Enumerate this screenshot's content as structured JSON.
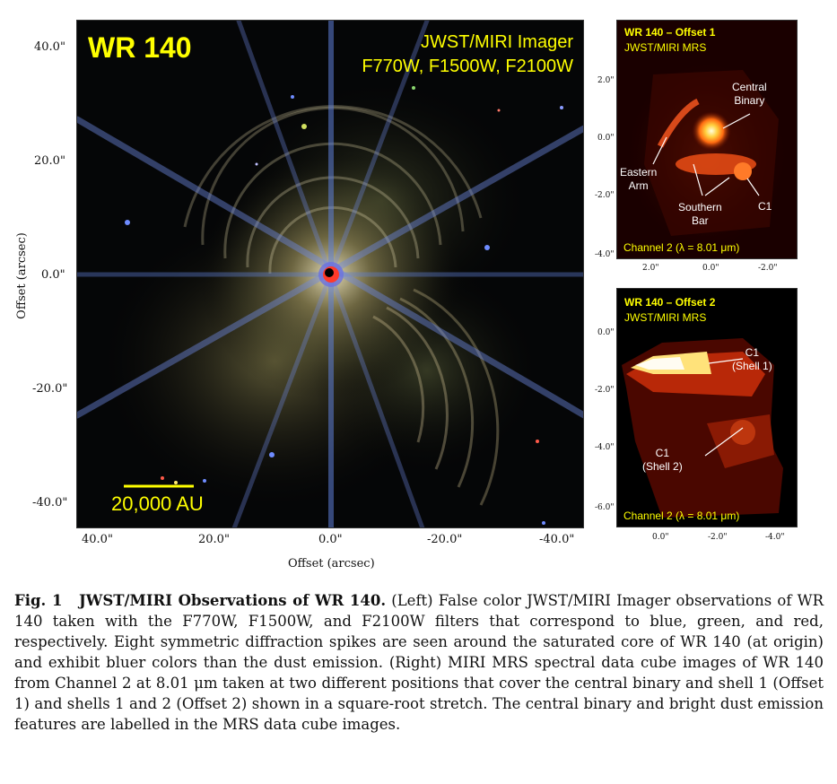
{
  "main_panel": {
    "title": "WR 140",
    "instrument": "JWST/MIRI Imager",
    "filters": "F770W, F1500W, F2100W",
    "scalebar": "20,000 AU",
    "y_ticks": [
      "40.0\"",
      "20.0\"",
      "0.0\"",
      "-20.0\"",
      "-40.0\""
    ],
    "x_ticks": [
      "40.0\"",
      "20.0\"",
      "0.0\"",
      "-20.0\"",
      "-40.0\""
    ],
    "ylabel": "Offset (arcsec)",
    "xlabel": "Offset (arcsec)"
  },
  "offset1_panel": {
    "title": "WR 140 – Offset 1",
    "subtitle": "JWST/MIRI MRS",
    "channel": "Channel 2 (λ = 8.01 μm)",
    "labels": {
      "central_binary": "Central\nBinary",
      "eastern_arm": "Eastern\nArm",
      "southern_bar": "Southern\nBar",
      "c1": "C1"
    },
    "y_ticks": [
      "2.0\"",
      "0.0\"",
      "-2.0\"",
      "-4.0\""
    ],
    "x_ticks": [
      "2.0\"",
      "0.0\"",
      "-2.0\""
    ]
  },
  "offset2_panel": {
    "title": "WR 140 – Offset 2",
    "subtitle": "JWST/MIRI MRS",
    "channel": "Channel 2 (λ = 8.01 μm)",
    "labels": {
      "c1_shell1": "C1\n(Shell 1)",
      "c1_shell2": "C1\n(Shell 2)"
    },
    "y_ticks": [
      "0.0\"",
      "-2.0\"",
      "-4.0\"",
      "-6.0\""
    ],
    "x_ticks": [
      "0.0\"",
      "-2.0\"",
      "-4.0\""
    ]
  },
  "caption": {
    "label": "Fig. 1",
    "title": "JWST/MIRI Observations of WR 140.",
    "body": "(Left) False color JWST/MIRI Imager observations of WR 140 taken with the F770W, F1500W, and F2100W filters that correspond to blue, green, and red, respectively.  Eight symmetric diffraction spikes are seen around the saturated core of WR 140 (at origin) and exhibit bluer colors than the dust emission. (Right) MIRI MRS spectral data cube images of WR 140 from Channel 2 at 8.01 μm taken at two different positions that cover the central binary and shell 1 (Offset 1) and shells 1 and 2 (Offset 2) shown in a square-root stretch.  The central binary and bright dust emission features are labelled in the MRS data cube images."
  },
  "colors": {
    "label_yellow": "#ffff00",
    "background": "#000000"
  }
}
